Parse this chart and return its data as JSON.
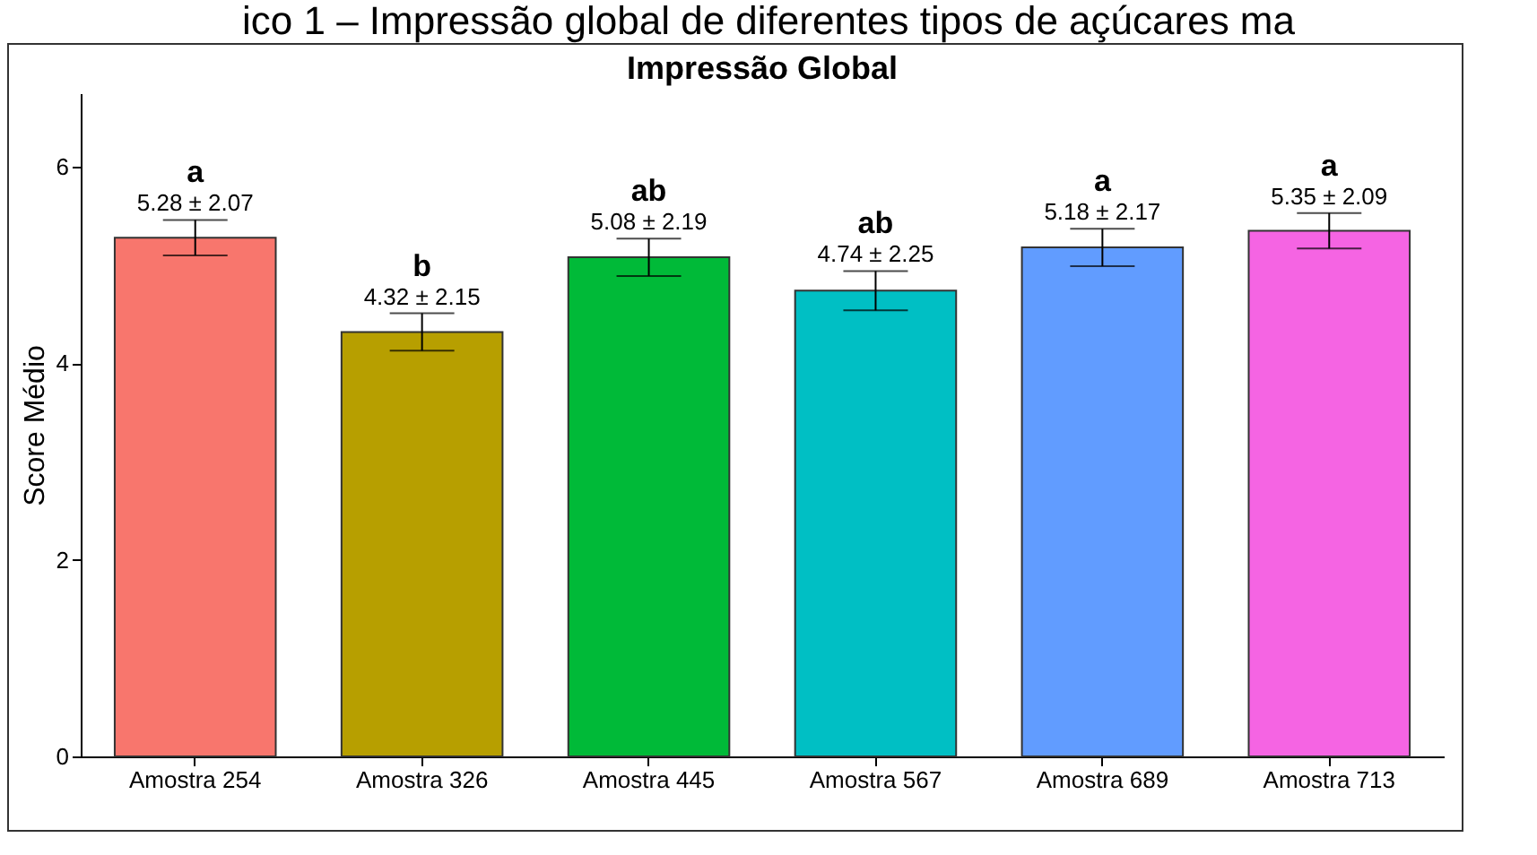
{
  "chart_data": {
    "type": "bar",
    "title": "Impressão Global",
    "ylabel": "Score Médio",
    "categories": [
      "Amostra 254",
      "Amostra 326",
      "Amostra 445",
      "Amostra 567",
      "Amostra 689",
      "Amostra 713"
    ],
    "values": [
      5.28,
      4.32,
      5.08,
      4.74,
      5.18,
      5.35
    ],
    "errors": [
      0.18,
      0.19,
      0.19,
      0.2,
      0.19,
      0.18
    ],
    "colors": [
      "#f8766d",
      "#b79f00",
      "#00ba38",
      "#00bfc4",
      "#619cff",
      "#f564e3"
    ],
    "value_labels": [
      "5.28 ± 2.07",
      "4.32 ± 2.15",
      "5.08 ± 2.19",
      "4.74 ± 2.25",
      "5.18 ± 2.17",
      "5.35 ± 2.09"
    ],
    "annotations": [
      "ico 1 – Impressão global de diferentes tipos de açúcares ma",
      "a",
      "b",
      "ab",
      "ab",
      "a",
      "a"
    ],
    "ylim": [
      0,
      6.75
    ],
    "yticks": [
      0,
      2,
      4,
      6
    ],
    "grid": false
  }
}
